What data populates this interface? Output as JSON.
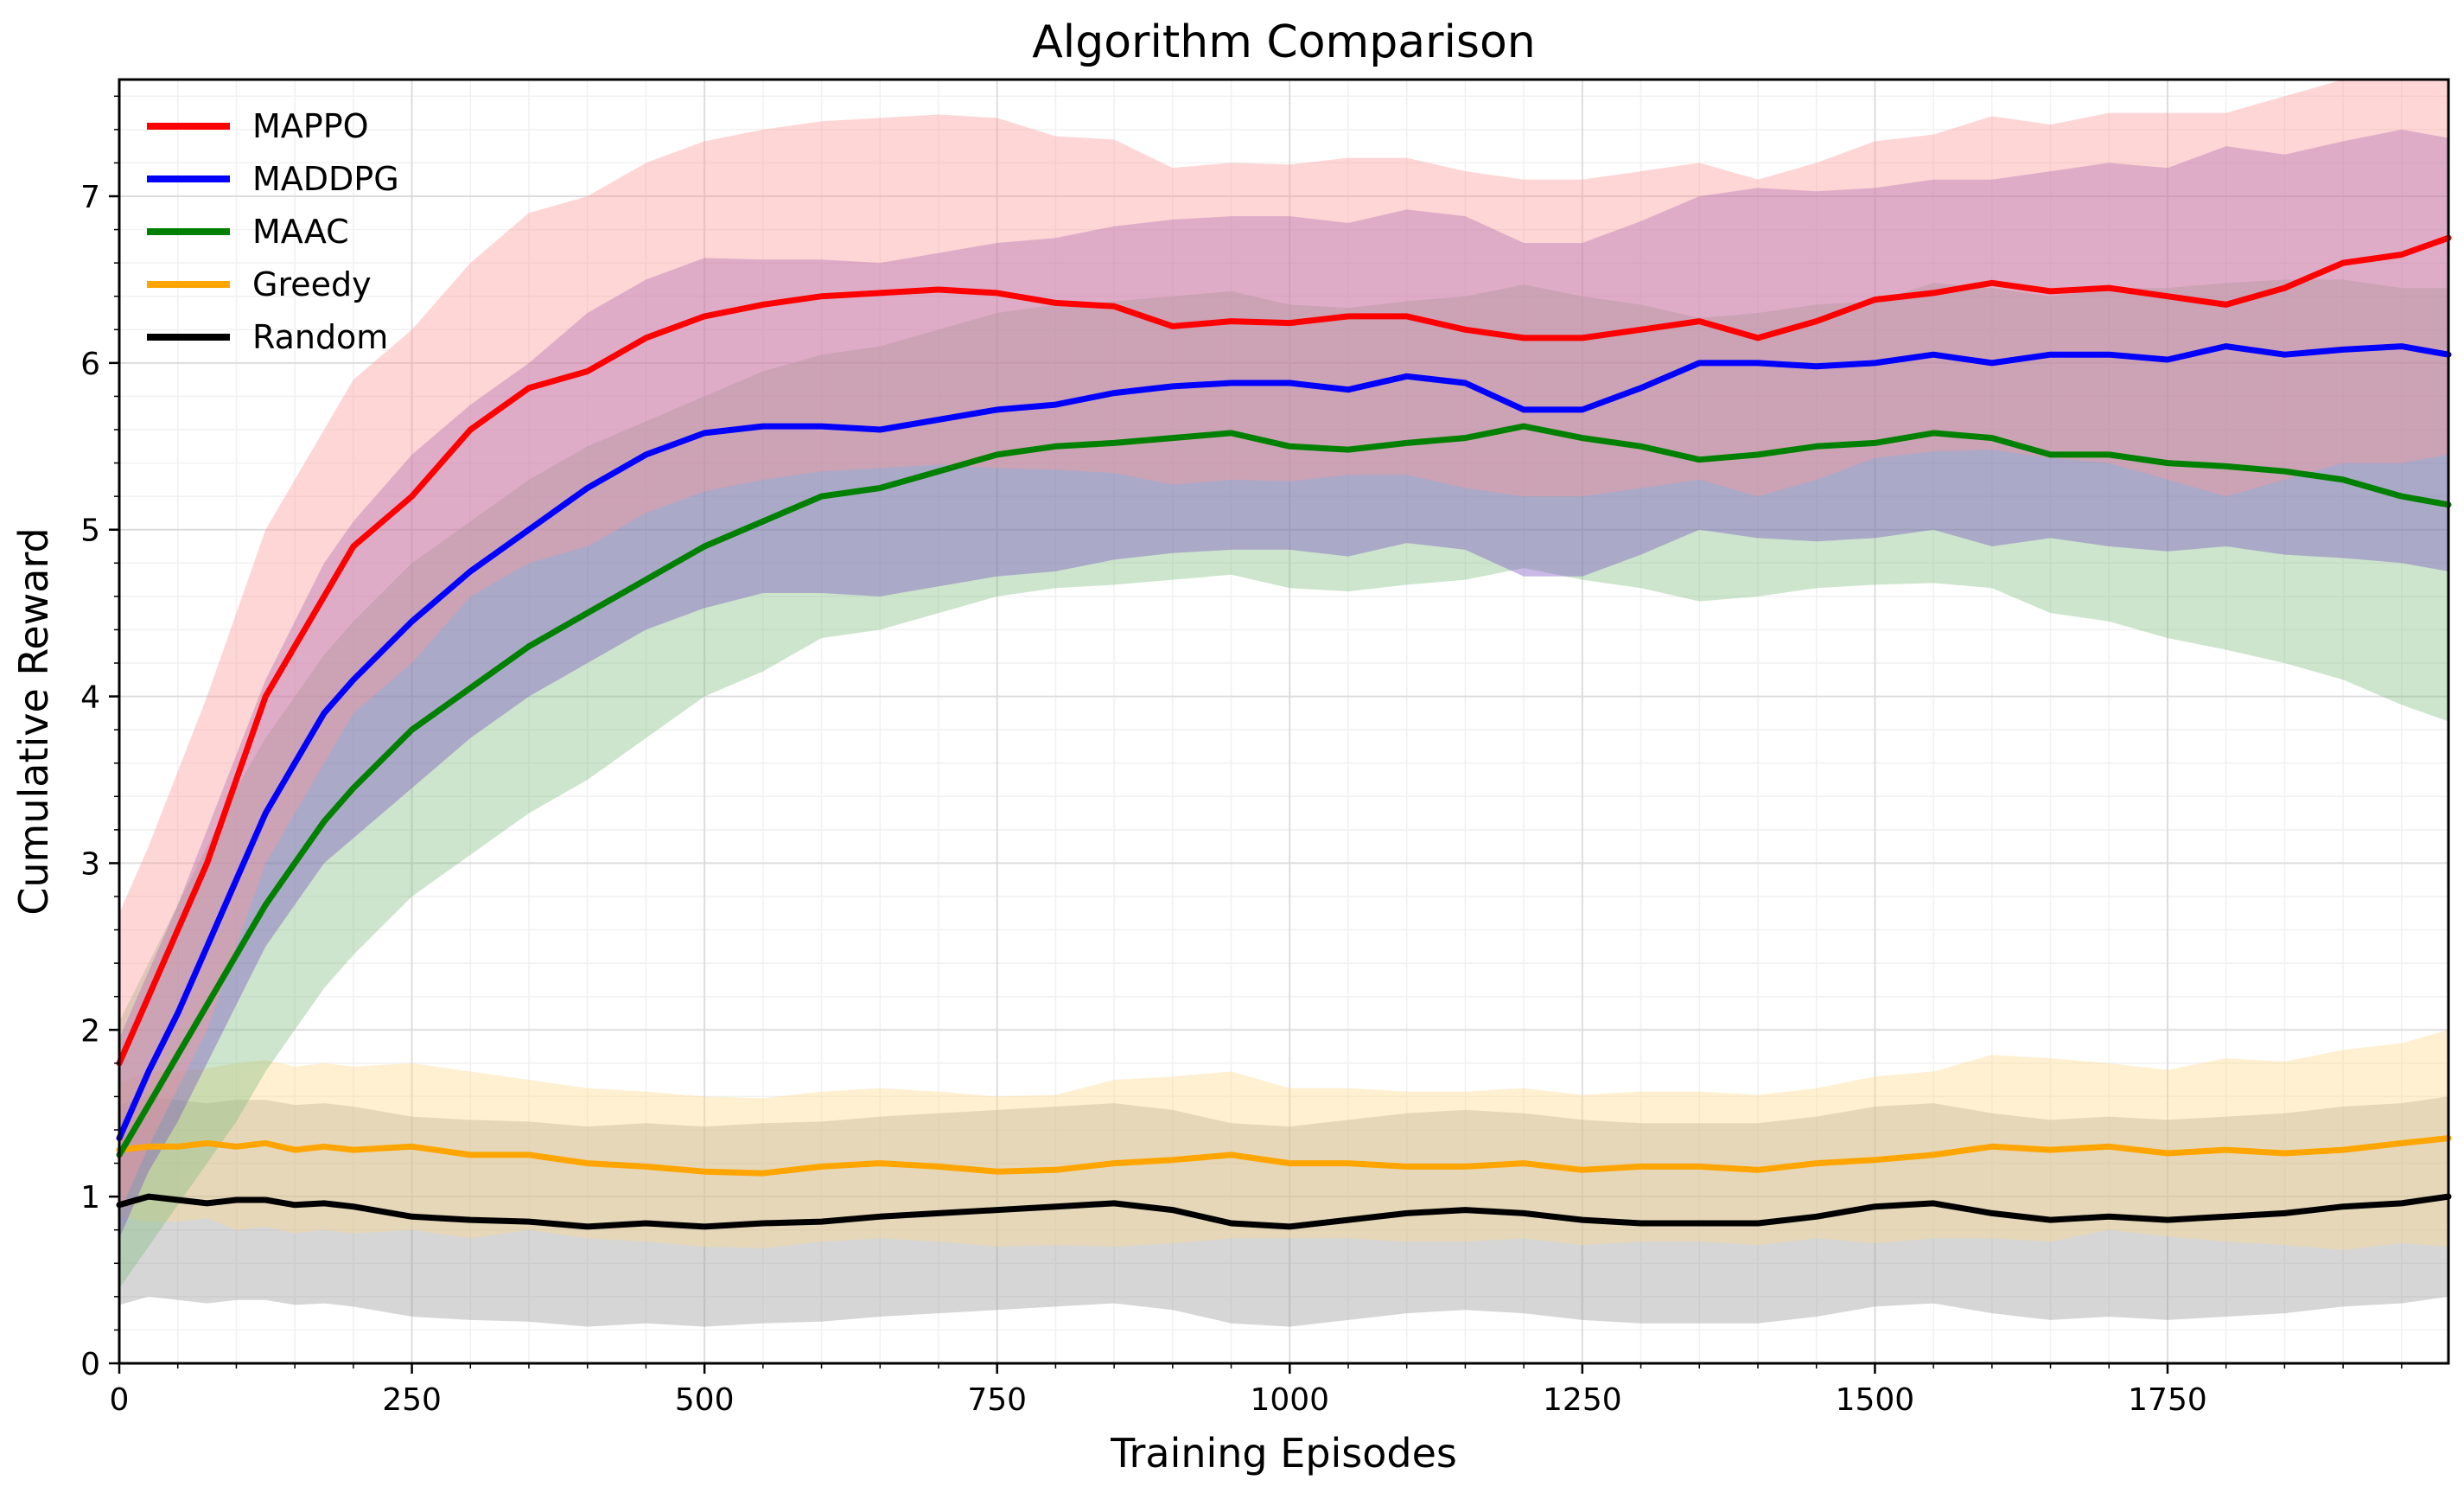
{
  "chart_data": {
    "type": "line",
    "title": "Algorithm Comparison",
    "xlabel": "Training Episodes",
    "ylabel": "Cumulative Reward",
    "xlim": [
      0,
      1990
    ],
    "ylim": [
      0,
      7.7
    ],
    "xticks": [
      0,
      250,
      500,
      750,
      1000,
      1250,
      1500,
      1750
    ],
    "xtick_labels": [
      "0",
      "250",
      "500",
      "750",
      "1000",
      "1250",
      "1500",
      "1750"
    ],
    "yticks": [
      0,
      1,
      2,
      3,
      4,
      5,
      6,
      7
    ],
    "ytick_labels": [
      "0",
      "1",
      "2",
      "3",
      "4",
      "5",
      "6",
      "7"
    ],
    "grid": true,
    "legend_position": "top-left",
    "series": [
      {
        "name": "MAPPO",
        "color": "#ff0000",
        "band_color": "#ff9999",
        "x": [
          0,
          25,
          50,
          75,
          100,
          125,
          150,
          175,
          200,
          250,
          300,
          350,
          400,
          450,
          500,
          550,
          600,
          650,
          700,
          750,
          800,
          850,
          900,
          950,
          1000,
          1050,
          1100,
          1150,
          1200,
          1250,
          1300,
          1350,
          1400,
          1450,
          1500,
          1550,
          1600,
          1650,
          1700,
          1750,
          1800,
          1850,
          1900,
          1950,
          1990
        ],
        "values": [
          1.8,
          2.2,
          2.6,
          3.0,
          3.5,
          4.0,
          4.3,
          4.6,
          4.9,
          5.2,
          5.6,
          5.85,
          5.95,
          6.15,
          6.28,
          6.35,
          6.4,
          6.42,
          6.44,
          6.42,
          6.36,
          6.34,
          6.22,
          6.25,
          6.24,
          6.28,
          6.28,
          6.2,
          6.15,
          6.15,
          6.2,
          6.25,
          6.15,
          6.25,
          6.38,
          6.42,
          6.48,
          6.43,
          6.45,
          6.4,
          6.35,
          6.45,
          6.6,
          6.65,
          6.75
        ],
        "band": [
          0.9,
          0.9,
          0.95,
          1.0,
          1.0,
          1.0,
          1.0,
          1.0,
          1.0,
          1.0,
          1.0,
          1.05,
          1.05,
          1.05,
          1.05,
          1.05,
          1.05,
          1.05,
          1.05,
          1.05,
          1.0,
          1.0,
          0.95,
          0.95,
          0.95,
          0.95,
          0.95,
          0.95,
          0.95,
          0.95,
          0.95,
          0.95,
          0.95,
          0.95,
          0.95,
          0.95,
          1.0,
          1.0,
          1.05,
          1.1,
          1.15,
          1.15,
          1.2,
          1.25,
          1.3
        ]
      },
      {
        "name": "MADDPG",
        "color": "#0000ff",
        "band_color": "#7b4fc4",
        "x": [
          0,
          25,
          50,
          75,
          100,
          125,
          150,
          175,
          200,
          250,
          300,
          350,
          400,
          450,
          500,
          550,
          600,
          650,
          700,
          750,
          800,
          850,
          900,
          950,
          1000,
          1050,
          1100,
          1150,
          1200,
          1250,
          1300,
          1350,
          1400,
          1450,
          1500,
          1550,
          1600,
          1650,
          1700,
          1750,
          1800,
          1850,
          1900,
          1950,
          1990
        ],
        "values": [
          1.35,
          1.75,
          2.1,
          2.5,
          2.9,
          3.3,
          3.6,
          3.9,
          4.1,
          4.45,
          4.75,
          5.0,
          5.25,
          5.45,
          5.58,
          5.62,
          5.62,
          5.6,
          5.66,
          5.72,
          5.75,
          5.82,
          5.86,
          5.88,
          5.88,
          5.84,
          5.92,
          5.88,
          5.72,
          5.72,
          5.85,
          6.0,
          6.0,
          5.98,
          6.0,
          6.05,
          6.0,
          6.05,
          6.05,
          6.02,
          6.1,
          6.05,
          6.08,
          6.1,
          6.05
        ],
        "band": [
          0.6,
          0.6,
          0.65,
          0.7,
          0.75,
          0.8,
          0.85,
          0.9,
          0.95,
          1.0,
          1.0,
          1.0,
          1.05,
          1.05,
          1.05,
          1.0,
          1.0,
          1.0,
          1.0,
          1.0,
          1.0,
          1.0,
          1.0,
          1.0,
          1.0,
          1.0,
          1.0,
          1.0,
          1.0,
          1.0,
          1.0,
          1.0,
          1.05,
          1.05,
          1.05,
          1.05,
          1.1,
          1.1,
          1.15,
          1.15,
          1.2,
          1.2,
          1.25,
          1.3,
          1.3
        ]
      },
      {
        "name": "MAAC",
        "color": "#008000",
        "band_color": "#7fbf7f",
        "x": [
          0,
          25,
          50,
          75,
          100,
          125,
          150,
          175,
          200,
          250,
          300,
          350,
          400,
          450,
          500,
          550,
          600,
          650,
          700,
          750,
          800,
          850,
          900,
          950,
          1000,
          1050,
          1100,
          1150,
          1200,
          1250,
          1300,
          1350,
          1400,
          1450,
          1500,
          1550,
          1600,
          1650,
          1700,
          1750,
          1800,
          1850,
          1900,
          1950,
          1990
        ],
        "values": [
          1.25,
          1.55,
          1.85,
          2.15,
          2.45,
          2.75,
          3.0,
          3.25,
          3.45,
          3.8,
          4.05,
          4.3,
          4.5,
          4.7,
          4.9,
          5.05,
          5.2,
          5.25,
          5.35,
          5.45,
          5.5,
          5.52,
          5.55,
          5.58,
          5.5,
          5.48,
          5.52,
          5.55,
          5.62,
          5.55,
          5.5,
          5.42,
          5.45,
          5.5,
          5.52,
          5.58,
          5.55,
          5.45,
          5.45,
          5.4,
          5.38,
          5.35,
          5.3,
          5.2,
          5.15
        ],
        "band": [
          0.8,
          0.85,
          0.9,
          0.95,
          1.0,
          1.0,
          1.0,
          1.0,
          1.0,
          1.0,
          1.0,
          1.0,
          1.0,
          0.95,
          0.9,
          0.9,
          0.85,
          0.85,
          0.85,
          0.85,
          0.85,
          0.85,
          0.85,
          0.85,
          0.85,
          0.85,
          0.85,
          0.85,
          0.85,
          0.85,
          0.85,
          0.85,
          0.85,
          0.85,
          0.85,
          0.9,
          0.9,
          0.95,
          1.0,
          1.05,
          1.1,
          1.15,
          1.2,
          1.25,
          1.3
        ]
      },
      {
        "name": "Greedy",
        "color": "#ffa500",
        "band_color": "#ffd98c",
        "x": [
          0,
          25,
          50,
          75,
          100,
          125,
          150,
          175,
          200,
          250,
          300,
          350,
          400,
          450,
          500,
          550,
          600,
          650,
          700,
          750,
          800,
          850,
          900,
          950,
          1000,
          1050,
          1100,
          1150,
          1200,
          1250,
          1300,
          1350,
          1400,
          1450,
          1500,
          1550,
          1600,
          1650,
          1700,
          1750,
          1800,
          1850,
          1900,
          1950,
          1990
        ],
        "values": [
          1.28,
          1.3,
          1.3,
          1.32,
          1.3,
          1.32,
          1.28,
          1.3,
          1.28,
          1.3,
          1.25,
          1.25,
          1.2,
          1.18,
          1.15,
          1.14,
          1.18,
          1.2,
          1.18,
          1.15,
          1.16,
          1.2,
          1.22,
          1.25,
          1.2,
          1.2,
          1.18,
          1.18,
          1.2,
          1.16,
          1.18,
          1.18,
          1.16,
          1.2,
          1.22,
          1.25,
          1.3,
          1.28,
          1.3,
          1.26,
          1.28,
          1.26,
          1.28,
          1.32,
          1.35
        ],
        "band": [
          0.4,
          0.45,
          0.45,
          0.45,
          0.5,
          0.5,
          0.5,
          0.5,
          0.5,
          0.5,
          0.5,
          0.45,
          0.45,
          0.45,
          0.45,
          0.45,
          0.45,
          0.45,
          0.45,
          0.45,
          0.45,
          0.5,
          0.5,
          0.5,
          0.45,
          0.45,
          0.45,
          0.45,
          0.45,
          0.45,
          0.45,
          0.45,
          0.45,
          0.45,
          0.5,
          0.5,
          0.55,
          0.55,
          0.5,
          0.5,
          0.55,
          0.55,
          0.6,
          0.6,
          0.65
        ]
      },
      {
        "name": "Random",
        "color": "#000000",
        "band_color": "#999999",
        "x": [
          0,
          25,
          50,
          75,
          100,
          125,
          150,
          175,
          200,
          250,
          300,
          350,
          400,
          450,
          500,
          550,
          600,
          650,
          700,
          750,
          800,
          850,
          900,
          950,
          1000,
          1050,
          1100,
          1150,
          1200,
          1250,
          1300,
          1350,
          1400,
          1450,
          1500,
          1550,
          1600,
          1650,
          1700,
          1750,
          1800,
          1850,
          1900,
          1950,
          1990
        ],
        "values": [
          0.95,
          1.0,
          0.98,
          0.96,
          0.98,
          0.98,
          0.95,
          0.96,
          0.94,
          0.88,
          0.86,
          0.85,
          0.82,
          0.84,
          0.82,
          0.84,
          0.85,
          0.88,
          0.9,
          0.92,
          0.94,
          0.96,
          0.92,
          0.84,
          0.82,
          0.86,
          0.9,
          0.92,
          0.9,
          0.86,
          0.84,
          0.84,
          0.84,
          0.88,
          0.94,
          0.96,
          0.9,
          0.86,
          0.88,
          0.86,
          0.88,
          0.9,
          0.94,
          0.96,
          1.0
        ],
        "band": [
          0.6,
          0.6,
          0.6,
          0.6,
          0.6,
          0.6,
          0.6,
          0.6,
          0.6,
          0.6,
          0.6,
          0.6,
          0.6,
          0.6,
          0.6,
          0.6,
          0.6,
          0.6,
          0.6,
          0.6,
          0.6,
          0.6,
          0.6,
          0.6,
          0.6,
          0.6,
          0.6,
          0.6,
          0.6,
          0.6,
          0.6,
          0.6,
          0.6,
          0.6,
          0.6,
          0.6,
          0.6,
          0.6,
          0.6,
          0.6,
          0.6,
          0.6,
          0.6,
          0.6,
          0.6
        ]
      }
    ]
  }
}
